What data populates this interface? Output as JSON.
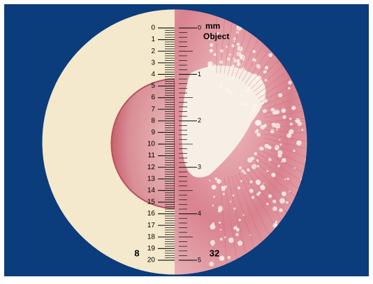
{
  "left_scale": {
    "labels": [
      "0",
      "1",
      "2",
      "3",
      "4",
      "5",
      "6",
      "7",
      "8",
      "9",
      "10",
      "11",
      "12",
      "13",
      "14",
      "15",
      "16",
      "17",
      "18",
      "19",
      "20"
    ],
    "magnification": "8"
  },
  "right_scale": {
    "labels": [
      "0",
      "1",
      "2",
      "3",
      "4",
      "5"
    ],
    "unit": "mm",
    "caption": "Object",
    "magnification": "32"
  }
}
